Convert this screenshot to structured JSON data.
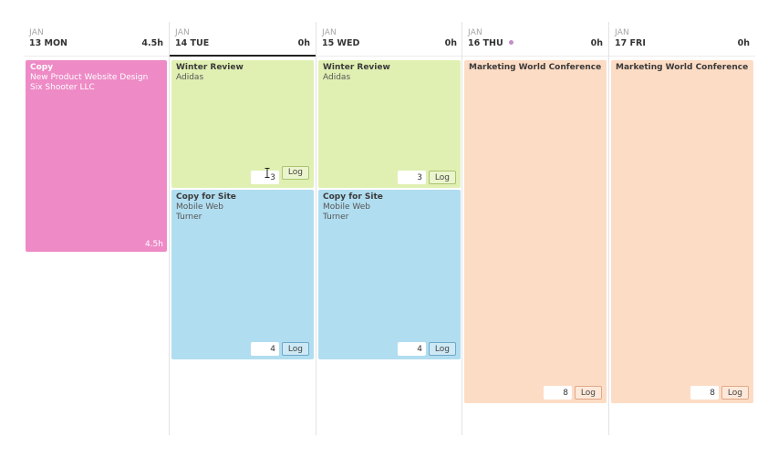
{
  "days": [
    {
      "month": "JAN",
      "date": "13 MON",
      "hours": "4.5h"
    },
    {
      "month": "JAN",
      "date": "14 TUE",
      "hours": "0h"
    },
    {
      "month": "JAN",
      "date": "15 WED",
      "hours": "0h"
    },
    {
      "month": "JAN",
      "date": "16 THU",
      "hours": "0h"
    },
    {
      "month": "JAN",
      "date": "17 FRI",
      "hours": "0h"
    }
  ],
  "entries": {
    "mon_copy": {
      "title": "Copy",
      "line1": "New Product Website Design",
      "line2": "Six Shooter LLC",
      "total": "4.5h"
    },
    "tue_winter": {
      "title": "Winter Review",
      "line1": "Adidas",
      "hours": "3",
      "log": "Log"
    },
    "tue_copy": {
      "title": "Copy for Site",
      "line1": "Mobile Web",
      "line2": "Turner",
      "hours": "4",
      "log": "Log"
    },
    "wed_winter": {
      "title": "Winter Review",
      "line1": "Adidas",
      "hours": "3",
      "log": "Log"
    },
    "wed_copy": {
      "title": "Copy for Site",
      "line1": "Mobile Web",
      "line2": "Turner",
      "hours": "4",
      "log": "Log"
    },
    "thu_conf": {
      "title": "Marketing World Conference",
      "hours": "8",
      "log": "Log"
    },
    "fri_conf": {
      "title": "Marketing World Conference",
      "hours": "8",
      "log": "Log"
    }
  },
  "colors": {
    "pink": "#ee8ac6",
    "green": "#e0f0b3",
    "blue": "#b1ddf0",
    "peach": "#fddcc5",
    "today_dot": "#c38dc8"
  }
}
